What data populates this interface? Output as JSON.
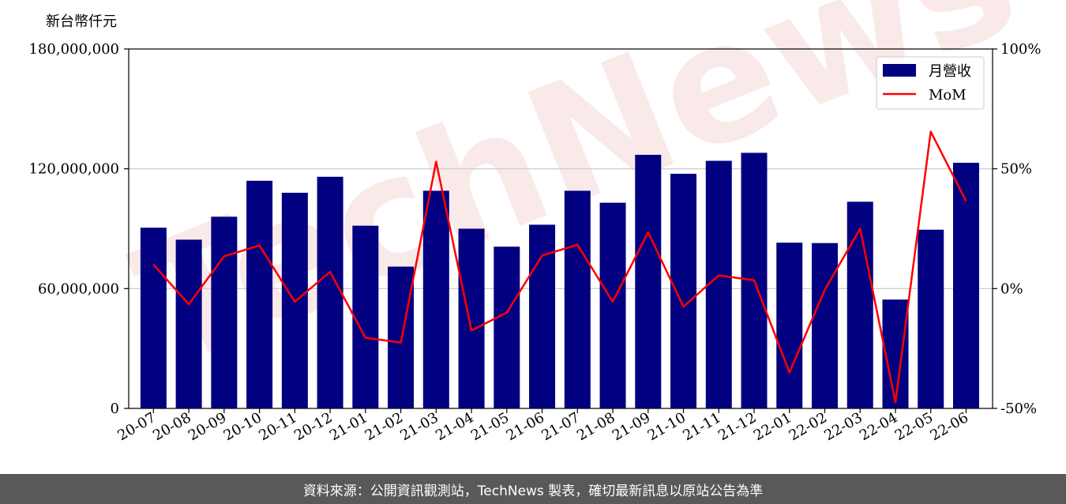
{
  "chart_data": {
    "type": "bar",
    "ylabel": "新台幣仟元",
    "categories": [
      "20-07",
      "20-08",
      "20-09",
      "20-10",
      "20-11",
      "20-12",
      "21-01",
      "21-02",
      "21-03",
      "21-04",
      "21-05",
      "21-06",
      "21-07",
      "21-08",
      "21-09",
      "21-10",
      "21-11",
      "21-12",
      "22-01",
      "22-02",
      "22-03",
      "22-04",
      "22-05",
      "22-06"
    ],
    "series": [
      {
        "name": "月營收",
        "type": "bar",
        "axis": "left",
        "color": "#000080",
        "values": [
          90500000,
          84500000,
          96000000,
          114000000,
          108000000,
          116000000,
          91500000,
          71000000,
          109000000,
          90000000,
          81000000,
          92000000,
          109000000,
          103000000,
          127000000,
          117500000,
          124000000,
          128000000,
          83000000,
          82800000,
          103500000,
          54500000,
          89500000,
          123000000
        ]
      },
      {
        "name": "MoM",
        "type": "line",
        "axis": "right",
        "color": "#ff0000",
        "values": [
          10,
          -6.5,
          13.5,
          18,
          -5.5,
          7,
          -20.5,
          -22.5,
          53,
          -17.5,
          -10,
          13.8,
          18.3,
          -5.5,
          23.5,
          -7.5,
          5.5,
          3.5,
          -35,
          -0.5,
          25,
          -47.5,
          65.5,
          36.5
        ]
      }
    ],
    "y_left": {
      "min": 0,
      "max": 180000000,
      "ticks": [
        0,
        60000000,
        120000000,
        180000000
      ],
      "tick_labels": [
        "0",
        "60,000,000",
        "120,000,000",
        "180,000,000"
      ]
    },
    "y_right": {
      "min": -50,
      "max": 100,
      "ticks": [
        -50,
        0,
        50,
        100
      ],
      "tick_labels": [
        "-50%",
        "0%",
        "50%",
        "100%"
      ]
    },
    "grid": "horizontal",
    "legend": "top-right",
    "watermark": "TechNews"
  },
  "footer": {
    "text": "資料來源：公開資訊觀測站，TechNews 製表，確切最新訊息以原站公告為準"
  }
}
